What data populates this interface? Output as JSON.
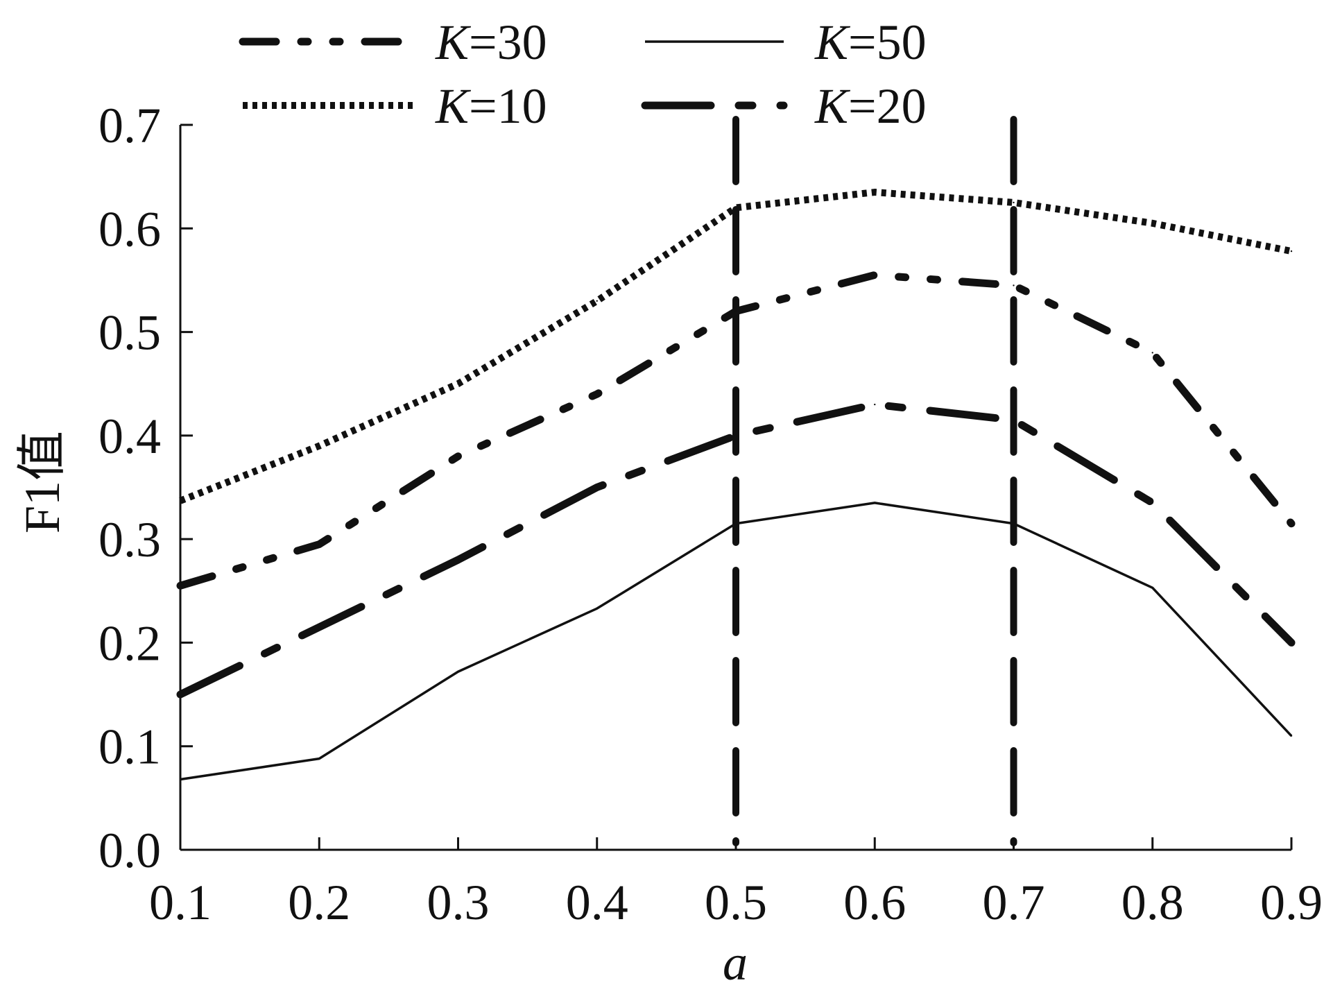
{
  "chart_data": {
    "type": "line",
    "title": "",
    "xlabel": "a",
    "ylabel": "F1值",
    "x": [
      0.1,
      0.2,
      0.3,
      0.4,
      0.5,
      0.6,
      0.7,
      0.8,
      0.9
    ],
    "x_tick_labels": [
      "0.1",
      "0.2",
      "0.3",
      "0.4",
      "0.5",
      "0.6",
      "0.7",
      "0.8",
      "0.9"
    ],
    "y_ticks": [
      0.0,
      0.1,
      0.2,
      0.3,
      0.4,
      0.5,
      0.6,
      0.7
    ],
    "y_tick_labels": [
      "0.0",
      "0.1",
      "0.2",
      "0.3",
      "0.4",
      "0.5",
      "0.6",
      "0.7"
    ],
    "xlim": [
      0.1,
      0.9
    ],
    "ylim": [
      0.0,
      0.7
    ],
    "grid": false,
    "legend_position": "top",
    "series": [
      {
        "key": "k30",
        "name": "K=30",
        "name_italic": "K",
        "name_rest": "=30",
        "style": "dash-dot-dot",
        "values": [
          0.255,
          0.295,
          0.38,
          0.44,
          0.52,
          0.555,
          0.545,
          0.48,
          0.315
        ]
      },
      {
        "key": "k50",
        "name": "K=50",
        "name_italic": "K",
        "name_rest": "=50",
        "style": "solid-thin",
        "values": [
          0.068,
          0.088,
          0.172,
          0.233,
          0.315,
          0.335,
          0.315,
          0.253,
          0.11
        ]
      },
      {
        "key": "k10",
        "name": "K=10",
        "name_italic": "K",
        "name_rest": "=10",
        "style": "dotted",
        "values": [
          0.337,
          0.39,
          0.45,
          0.53,
          0.62,
          0.635,
          0.625,
          0.605,
          0.578
        ]
      },
      {
        "key": "k20",
        "name": "K=20",
        "name_italic": "K",
        "name_rest": "=20",
        "style": "long-dash",
        "values": [
          0.15,
          0.215,
          0.28,
          0.35,
          0.4,
          0.43,
          0.415,
          0.335,
          0.2
        ]
      }
    ],
    "reference_lines": [
      {
        "x": 0.5,
        "style": "dashed-vertical"
      },
      {
        "x": 0.7,
        "style": "dashed-vertical"
      }
    ]
  }
}
